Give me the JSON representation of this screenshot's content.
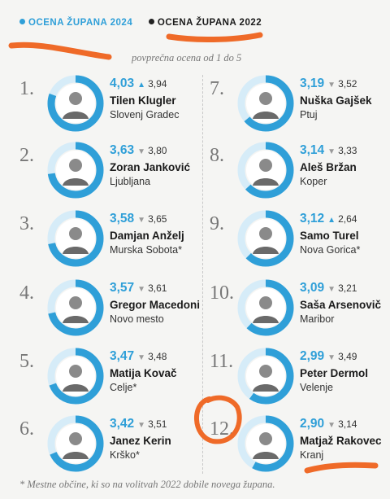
{
  "colors": {
    "accent": "#2f9fd8",
    "ring_background": "#d6ecf8",
    "marker": "#ef6a28"
  },
  "legend": {
    "current_label": "OCENA ŽUPANA 2024",
    "previous_label": "OCENA ŽUPANA 2022"
  },
  "note": "povprečna ocena od 1 do 5",
  "mayors": [
    {
      "rank": "1.",
      "score_2024": "4,03",
      "score_2022": "3,94",
      "trend_icon": "up-arrow-icon",
      "name": "Tilen Klugler",
      "municipality": "Slovenj Gradec",
      "rating": 4.03
    },
    {
      "rank": "2.",
      "score_2024": "3,63",
      "score_2022": "3,80",
      "trend_icon": "down-arrow-icon",
      "name": "Zoran Janković",
      "municipality": "Ljubljana",
      "rating": 3.63
    },
    {
      "rank": "3.",
      "score_2024": "3,58",
      "score_2022": "3,65",
      "trend_icon": "down-arrow-icon",
      "name": "Damjan Anželj",
      "municipality": "Murska Sobota*",
      "rating": 3.58
    },
    {
      "rank": "4.",
      "score_2024": "3,57",
      "score_2022": "3,61",
      "trend_icon": "down-arrow-icon",
      "name": "Gregor Macedoni",
      "municipality": "Novo mesto",
      "rating": 3.57
    },
    {
      "rank": "5.",
      "score_2024": "3,47",
      "score_2022": "3,48",
      "trend_icon": "down-arrow-icon",
      "name": "Matija Kovač",
      "municipality": "Celje*",
      "rating": 3.47
    },
    {
      "rank": "6.",
      "score_2024": "3,42",
      "score_2022": "3,51",
      "trend_icon": "down-arrow-icon",
      "name": "Janez Kerin",
      "municipality": "Krško*",
      "rating": 3.42
    },
    {
      "rank": "7.",
      "score_2024": "3,19",
      "score_2022": "3,52",
      "trend_icon": "down-arrow-icon",
      "name": "Nuška Gajšek",
      "municipality": "Ptuj",
      "rating": 3.19
    },
    {
      "rank": "8.",
      "score_2024": "3,14",
      "score_2022": "3,33",
      "trend_icon": "down-arrow-icon",
      "name": "Aleš Bržan",
      "municipality": "Koper",
      "rating": 3.14
    },
    {
      "rank": "9.",
      "score_2024": "3,12",
      "score_2022": "2,64",
      "trend_icon": "up-arrow-icon",
      "name": "Samo Turel",
      "municipality": "Nova Gorica*",
      "rating": 3.12
    },
    {
      "rank": "10.",
      "score_2024": "3,09",
      "score_2022": "3,21",
      "trend_icon": "down-arrow-icon",
      "name": "Saša Arsenovič",
      "municipality": "Maribor",
      "rating": 3.09
    },
    {
      "rank": "11.",
      "score_2024": "2,99",
      "score_2022": "3,49",
      "trend_icon": "down-arrow-icon",
      "name": "Peter Dermol",
      "municipality": "Velenje",
      "rating": 2.99
    },
    {
      "rank": "12.",
      "score_2024": "2,90",
      "score_2022": "3,14",
      "trend_icon": "down-arrow-icon",
      "name": "Matjaž Rakovec",
      "municipality": "Kranj",
      "rating": 2.9
    }
  ],
  "footnote": "* Mestne občine, ki so na volitvah 2022 dobile novega župana."
}
